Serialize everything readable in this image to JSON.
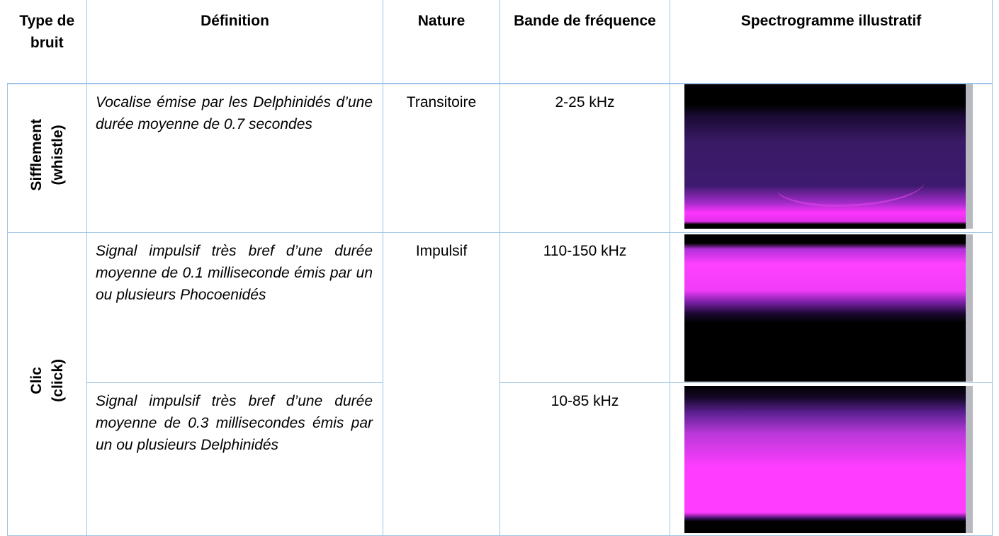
{
  "table": {
    "headers": [
      "Type de bruit",
      "Définition",
      "Nature",
      "Bande de fréquence",
      "Spectrogramme illustratif"
    ],
    "rows": [
      {
        "type": [
          "Sifflement",
          "(whistle)"
        ],
        "nature": "Transitoire",
        "entries": [
          {
            "definition": "Vocalise émise par les Delphinidés d’une durée moyenne de 0.7 secondes",
            "band": "2-25 kHz"
          }
        ]
      },
      {
        "type": [
          "Clic",
          "(click)"
        ],
        "nature": "Impulsif",
        "entries": [
          {
            "definition": "Signal impulsif très bref d’une durée moyenne de 0.1 milliseconde émis par un ou plusieurs Phocoenidés",
            "band": "110-150 kHz"
          },
          {
            "definition": "Signal impulsif très bref d’une durée moyenne de 0.3 millisecondes émis par un ou plusieurs Delphinidés",
            "band": "10-85 kHz"
          }
        ]
      }
    ]
  }
}
